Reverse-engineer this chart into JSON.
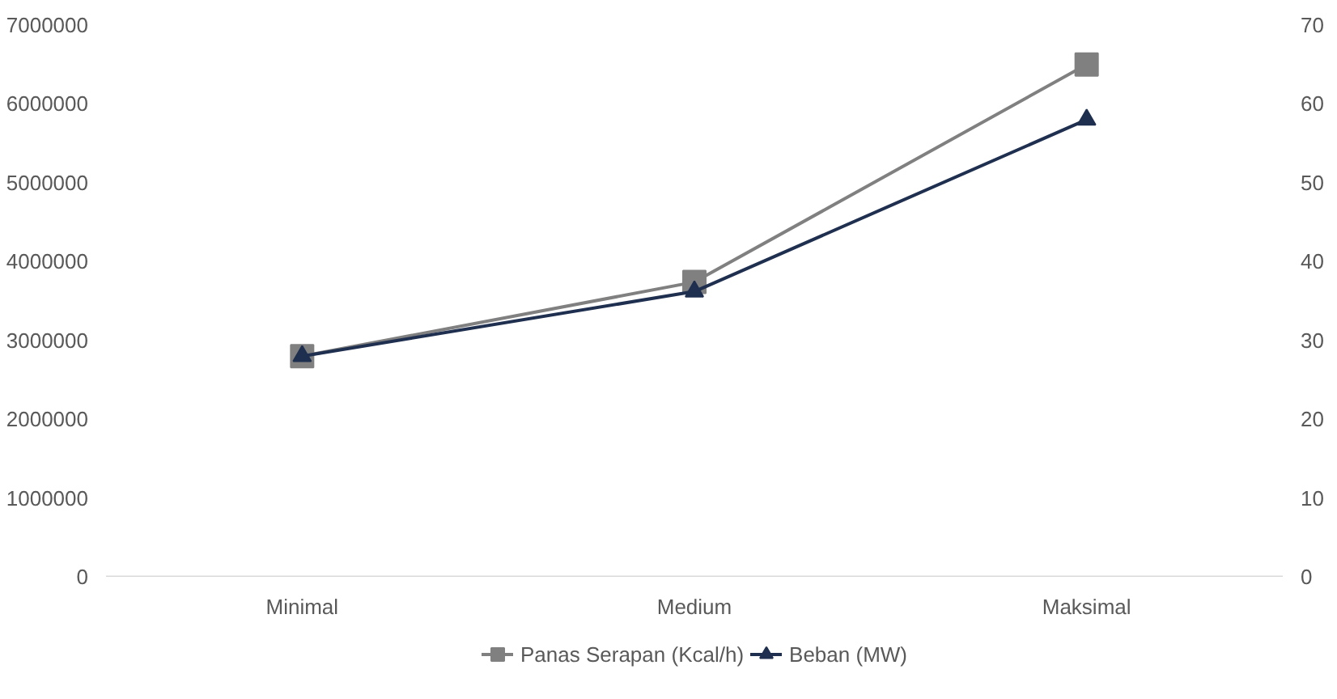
{
  "chart_data": {
    "type": "line",
    "categories": [
      "Minimal",
      "Medium",
      "Maksimal"
    ],
    "series": [
      {
        "name": "Panas Serapan (Kcal/h)",
        "color": "#808080",
        "values": [
          2800000,
          3740000,
          6500000
        ],
        "marker": "square"
      },
      {
        "name": "Beban (MW)",
        "color": "#1f2f4f",
        "values": [
          28,
          36.2,
          58
        ],
        "axis": "y2",
        "marker": "triangle"
      }
    ],
    "ylim": [
      0,
      7000000
    ],
    "yticks": [
      0,
      1000000,
      2000000,
      3000000,
      4000000,
      5000000,
      6000000,
      7000000
    ],
    "y2lim": [
      0,
      70
    ],
    "y2ticks": [
      0,
      10,
      20,
      30,
      40,
      50,
      60,
      70
    ],
    "grid": false,
    "legend": "bottom",
    "line_style": "solid"
  }
}
